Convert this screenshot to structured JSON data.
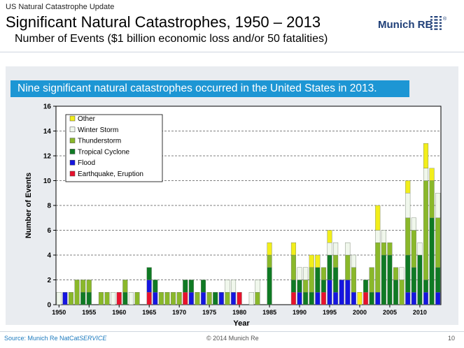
{
  "header": {
    "kicker": "US Natural Catastrophe Update",
    "title": "Significant Natural Catastrophes, 1950 – 2013",
    "subtitle": "Number of Events ($1 billion economic loss and/or 50 fatalities)"
  },
  "logo": {
    "text": "Munich RE",
    "symbol": "®"
  },
  "banner": {
    "text": "Nine significant natural catastrophes occurred in the United States in 2013."
  },
  "footer": {
    "source_prefix": "Source: Munich Re NatCat",
    "source_suffix": "SERVICE",
    "copyright": "© 2014 Munich Re",
    "page": "10"
  },
  "chart_data": {
    "type": "bar",
    "stacked": true,
    "xlabel": "Year",
    "ylabel": "Number of Events",
    "ylim": [
      0,
      16
    ],
    "yticks": [
      0,
      2,
      4,
      6,
      8,
      10,
      12,
      14,
      16
    ],
    "xticks": [
      1950,
      1955,
      1960,
      1965,
      1970,
      1975,
      1980,
      1985,
      1990,
      1995,
      2000,
      2005,
      2010
    ],
    "grid": "horizontal-dashed",
    "legend_position": "top-left",
    "colors": {
      "Earthquake, Eruption": "#e8112d",
      "Flood": "#1515e0",
      "Tropical Cyclone": "#0f7a24",
      "Thunderstorm": "#8ab82a",
      "Winter Storm": "#f0f7ec",
      "Other": "#f2ee1a"
    },
    "legend": [
      "Other",
      "Winter Storm",
      "Thunderstorm",
      "Tropical Cyclone",
      "Flood",
      "Earthquake, Eruption"
    ],
    "stack_order": [
      "Earthquake, Eruption",
      "Flood",
      "Tropical Cyclone",
      "Thunderstorm",
      "Winter Storm",
      "Other"
    ],
    "categories": [
      1950,
      1951,
      1952,
      1953,
      1954,
      1955,
      1956,
      1957,
      1958,
      1959,
      1960,
      1961,
      1962,
      1963,
      1964,
      1965,
      1966,
      1967,
      1968,
      1969,
      1970,
      1971,
      1972,
      1973,
      1974,
      1975,
      1976,
      1977,
      1978,
      1979,
      1980,
      1981,
      1982,
      1983,
      1984,
      1985,
      1986,
      1987,
      1988,
      1989,
      1990,
      1991,
      1992,
      1993,
      1994,
      1995,
      1996,
      1997,
      1998,
      1999,
      2000,
      2001,
      2002,
      2003,
      2004,
      2005,
      2006,
      2007,
      2008,
      2009,
      2010,
      2011,
      2012,
      2013
    ],
    "series": [
      {
        "name": "Earthquake, Eruption",
        "values": [
          0,
          0,
          0,
          0,
          0,
          0,
          0,
          0,
          0,
          0,
          1,
          0,
          0,
          0,
          0,
          1,
          0,
          0,
          0,
          0,
          0,
          1,
          0,
          0,
          0,
          0,
          0,
          0,
          0,
          0,
          1,
          0,
          0,
          0,
          0,
          0,
          0,
          0,
          0,
          1,
          0,
          0,
          0,
          0,
          1,
          0,
          0,
          0,
          0,
          0,
          0,
          1,
          0,
          0,
          0,
          0,
          0,
          0,
          0,
          0,
          0,
          0,
          0,
          0
        ]
      },
      {
        "name": "Flood",
        "values": [
          0,
          1,
          0,
          0,
          0,
          0,
          0,
          0,
          0,
          0,
          0,
          0,
          0,
          0,
          0,
          1,
          1,
          0,
          0,
          0,
          0,
          0,
          1,
          0,
          1,
          0,
          0,
          1,
          0,
          1,
          0,
          0,
          0,
          0,
          0,
          0,
          0,
          0,
          0,
          0,
          1,
          0,
          0,
          1,
          0,
          2,
          1,
          2,
          2,
          1,
          0,
          0,
          0,
          1,
          0,
          0,
          0,
          0,
          1,
          1,
          0,
          1,
          0,
          1
        ]
      },
      {
        "name": "Tropical Cyclone",
        "values": [
          0,
          0,
          0,
          0,
          1,
          1,
          0,
          0,
          0,
          0,
          0,
          1,
          0,
          0,
          0,
          1,
          1,
          0,
          0,
          0,
          0,
          1,
          1,
          0,
          1,
          0,
          1,
          0,
          0,
          0,
          0,
          0,
          0,
          0,
          0,
          3,
          0,
          0,
          0,
          1,
          1,
          1,
          1,
          2,
          1,
          2,
          2,
          0,
          0,
          0,
          0,
          1,
          1,
          0,
          4,
          4,
          2,
          0,
          3,
          2,
          4,
          1,
          7,
          2
        ]
      },
      {
        "name": "Thunderstorm",
        "values": [
          0,
          0,
          1,
          2,
          1,
          1,
          0,
          1,
          1,
          0,
          0,
          1,
          0,
          1,
          0,
          0,
          0,
          1,
          1,
          1,
          1,
          0,
          0,
          1,
          0,
          1,
          0,
          0,
          1,
          0,
          0,
          0,
          0,
          1,
          0,
          1,
          0,
          0,
          0,
          2,
          0,
          1,
          2,
          0,
          1,
          0,
          1,
          0,
          2,
          2,
          0,
          0,
          2,
          4,
          1,
          1,
          1,
          2,
          3,
          3,
          0,
          8,
          3,
          4
        ]
      },
      {
        "name": "Winter Storm",
        "values": [
          1,
          0,
          0,
          0,
          0,
          0,
          0,
          0,
          0,
          1,
          0,
          0,
          1,
          0,
          0,
          0,
          0,
          0,
          0,
          0,
          0,
          0,
          0,
          0,
          0,
          0,
          0,
          0,
          1,
          1,
          0,
          0,
          1,
          1,
          0,
          0,
          0,
          0,
          0,
          0,
          1,
          1,
          0,
          0,
          0,
          1,
          1,
          0,
          1,
          1,
          0,
          0,
          0,
          1,
          1,
          0,
          0,
          1,
          2,
          1,
          1,
          1,
          0,
          2
        ]
      },
      {
        "name": "Other",
        "values": [
          0,
          0,
          0,
          0,
          0,
          0,
          0,
          0,
          0,
          0,
          0,
          0,
          0,
          0,
          0,
          0,
          0,
          0,
          0,
          0,
          0,
          0,
          0,
          0,
          0,
          0,
          0,
          0,
          0,
          0,
          0,
          0,
          0,
          0,
          0,
          1,
          0,
          0,
          0,
          1,
          0,
          0,
          1,
          1,
          0,
          1,
          0,
          0,
          0,
          0,
          1,
          0,
          0,
          2,
          0,
          0,
          0,
          0,
          1,
          0,
          0,
          2,
          1,
          0
        ]
      }
    ]
  }
}
